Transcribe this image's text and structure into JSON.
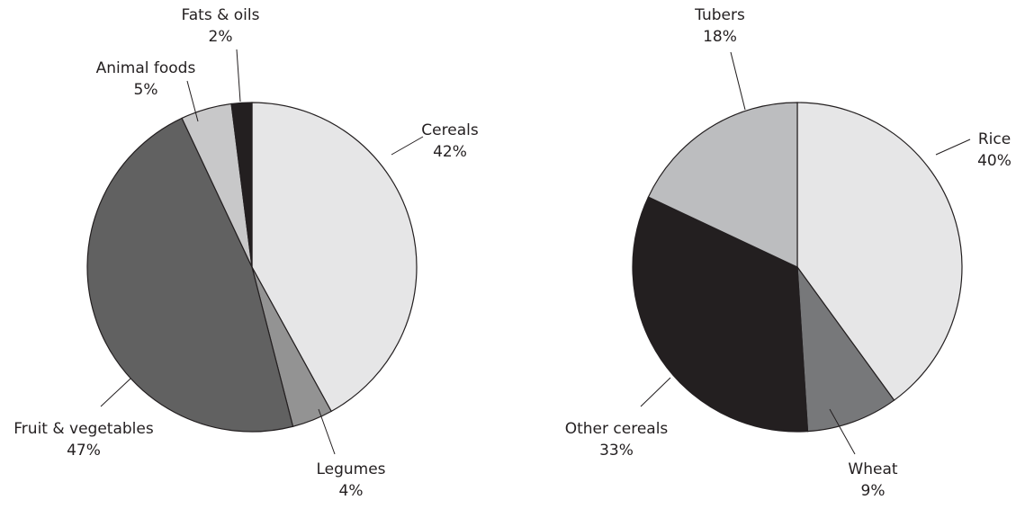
{
  "chart_data": [
    {
      "type": "pie",
      "categories": [
        "Cereals",
        "Legumes",
        "Fruit & vegetables",
        "Animal foods",
        "Fats & oils"
      ],
      "values": [
        42,
        4,
        47,
        5,
        2
      ],
      "value_labels": [
        "42%",
        "4%",
        "47%",
        "5%",
        "2%"
      ],
      "colors": [
        "#e6e6e7",
        "#939393",
        "#616161",
        "#c8c8c9",
        "#231f20"
      ]
    },
    {
      "type": "pie",
      "categories": [
        "Rice",
        "Wheat",
        "Other cereals",
        "Tubers"
      ],
      "values": [
        40,
        9,
        33,
        18
      ],
      "value_labels": [
        "40%",
        "9%",
        "33%",
        "18%"
      ],
      "colors": [
        "#e6e6e7",
        "#77787a",
        "#231f20",
        "#bcbdbf"
      ]
    }
  ]
}
